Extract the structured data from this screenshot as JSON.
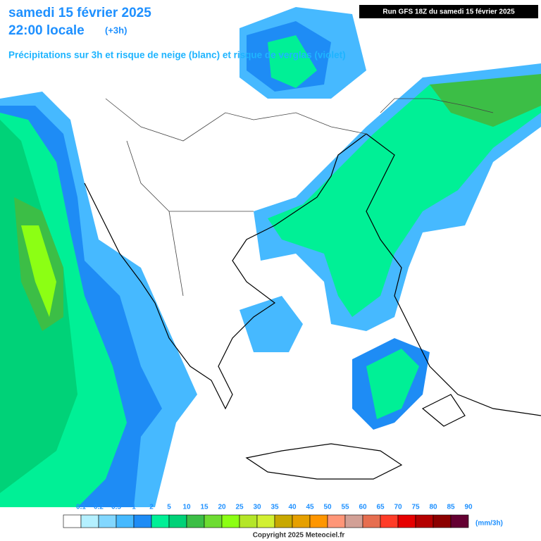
{
  "header": {
    "title": "samedi 15 février 2025",
    "time": "22:00 locale",
    "offset": "(+3h)",
    "run": "Run GFS 18Z du samedi 15 février 2025",
    "subtitle": "Précipitations sur 3h et risque de neige (blanc) et risque de verglas (violet)"
  },
  "legend": {
    "labels": [
      "0.1",
      "0.2",
      "0.5",
      "1",
      "2",
      "5",
      "10",
      "15",
      "20",
      "25",
      "30",
      "35",
      "40",
      "45",
      "50",
      "55",
      "60",
      "65",
      "70",
      "75",
      "80",
      "85",
      "90"
    ],
    "colors": [
      "#ffffff",
      "#b4f0ff",
      "#82d7ff",
      "#46b9ff",
      "#1e8cf5",
      "#00f096",
      "#00d278",
      "#3cbe46",
      "#6edc32",
      "#8cff14",
      "#b4e628",
      "#d2f032",
      "#c8a800",
      "#e6a000",
      "#ff9600",
      "#ff9678",
      "#d2a096",
      "#e66e50",
      "#ff3c28",
      "#e60000",
      "#b40000",
      "#8c0000",
      "#640032"
    ],
    "unit": "(mm/3h)"
  },
  "footer": {
    "copyright": "Copyright 2025 Meteociel.fr"
  }
}
